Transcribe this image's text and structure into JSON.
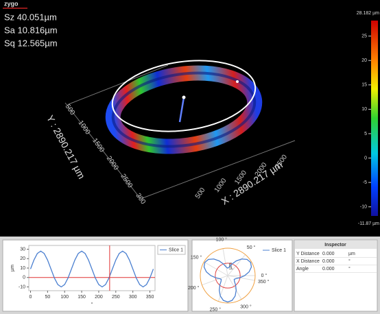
{
  "header": {
    "logo": "zygo",
    "stats": [
      "Sz 40.051µm",
      "Sa 10.816µm",
      "Sq 12.565µm"
    ]
  },
  "view3d": {
    "y_axis_label": "Y : 2890.217 µm",
    "x_axis_label": "X : 2890.217 µm",
    "y_tick_labels": [
      "500",
      "1000",
      "1500",
      "2000",
      "2500",
      "300"
    ],
    "x_tick_labels": [
      "500",
      "1000",
      "1500",
      "2000",
      "2500"
    ]
  },
  "colorbar": {
    "lim": [
      -11.87,
      28.182
    ],
    "ticks": [
      {
        "value": 28.182,
        "label": "28.182 µm"
      },
      25,
      20,
      15,
      10,
      5,
      0,
      -5,
      -10,
      {
        "value": -11.87,
        "label": "-11.87 µm"
      }
    ]
  },
  "chart_data": [
    {
      "type": "line",
      "xlabel": "°",
      "ylabel": "µm",
      "x": [
        0,
        10,
        20,
        30,
        40,
        50,
        60,
        70,
        80,
        90,
        100,
        110,
        120,
        130,
        140,
        150,
        160,
        170,
        180,
        190,
        200,
        210,
        220,
        230,
        240,
        250,
        260,
        270,
        280,
        290,
        300,
        310,
        320,
        330,
        340,
        350,
        360
      ],
      "series": [
        {
          "name": "Slice 1",
          "color": "#4a7fd0",
          "values": [
            9,
            18.5,
            25.5,
            28,
            25.5,
            18.5,
            9,
            -0.5,
            -7.5,
            -10,
            -7.5,
            -0.5,
            9,
            18.5,
            25.5,
            28,
            25.5,
            18.5,
            9,
            -0.5,
            -7.5,
            -10,
            -7.5,
            -0.5,
            9,
            18.5,
            25.5,
            28,
            25.5,
            18.5,
            9,
            -0.5,
            -7.5,
            -10,
            -7.5,
            -0.5,
            9
          ]
        }
      ],
      "xlim": [
        -5,
        365
      ],
      "ylim": [
        -14,
        34
      ],
      "xticks": [
        0,
        50,
        100,
        150,
        200,
        250,
        300,
        350
      ],
      "yticks": [
        -10,
        0,
        10,
        20,
        30
      ],
      "hline": 0,
      "cursor_x": 232
    },
    {
      "type": "polar",
      "theta": [
        0,
        10,
        20,
        30,
        40,
        50,
        60,
        70,
        80,
        90,
        100,
        110,
        120,
        130,
        140,
        150,
        160,
        170,
        180,
        190,
        200,
        210,
        220,
        230,
        240,
        250,
        260,
        270,
        280,
        290,
        300,
        310,
        320,
        330,
        340,
        350,
        360
      ],
      "rlabel": "µm",
      "series": [
        {
          "name": "Slice 1",
          "color": "#4a7fd0",
          "values": [
            9,
            18.5,
            25.5,
            28,
            25.5,
            18.5,
            9,
            -0.5,
            -7.5,
            -10,
            -7.5,
            -0.5,
            9,
            18.5,
            25.5,
            28,
            25.5,
            18.5,
            9,
            -0.5,
            -7.5,
            -10,
            -7.5,
            -0.5,
            9,
            18.5,
            25.5,
            28,
            25.5,
            18.5,
            9,
            -0.5,
            -7.5,
            -10,
            -7.5,
            -0.5,
            9
          ]
        }
      ],
      "rlim": [
        -25,
        30
      ],
      "rings": [
        0,
        30
      ],
      "ring_colors": [
        "#e04040",
        "#f0a040"
      ],
      "angle_ticks": [
        {
          "value": 0,
          "label": "0 °"
        },
        {
          "value": 50,
          "label": "50 °"
        },
        {
          "value": 100,
          "label": "100 °"
        },
        {
          "value": 150,
          "label": "150 °"
        },
        {
          "value": 200,
          "label": "200 °"
        },
        {
          "value": 250,
          "label": "250 °"
        },
        {
          "value": 300,
          "label": "300 °"
        },
        {
          "value": 350,
          "label": "350 °"
        }
      ]
    }
  ],
  "inspector": {
    "title": "Inspector",
    "rows": [
      [
        "Y Distance",
        "0.000",
        "µm"
      ],
      [
        "X Distance",
        "0.000",
        "°"
      ],
      [
        "Angle",
        "0.000",
        "°"
      ]
    ]
  }
}
